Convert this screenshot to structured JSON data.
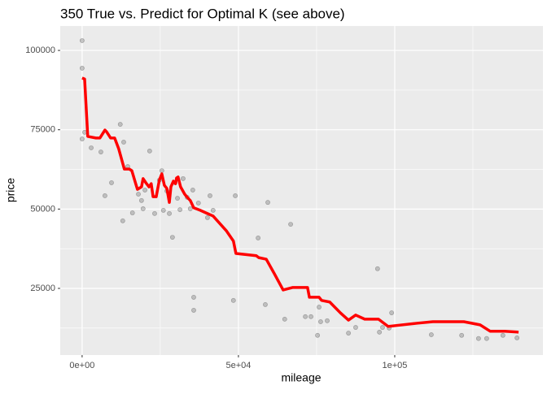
{
  "chart_data": {
    "type": "scatter",
    "title": "350 True vs. Predict for Optimal K (see above)",
    "x_label": "mileage",
    "y_label": "price",
    "xlim": [
      -7000,
      147400
    ],
    "ylim": [
      4000,
      107700
    ],
    "xticks": [
      {
        "value": 0,
        "label": "0e+00"
      },
      {
        "value": 50000,
        "label": "5e+04"
      },
      {
        "value": 100000,
        "label": "1e+05"
      }
    ],
    "yticks": [
      25000,
      50000,
      75000,
      100000
    ],
    "grid": true,
    "series": [
      {
        "type": "scatter",
        "color": "#555555",
        "x": [
          0,
          0,
          0,
          800,
          2900,
          6000,
          7300,
          9400,
          12200,
          13300,
          13000,
          14600,
          16100,
          18000,
          19000,
          19500,
          20100,
          21600,
          23200,
          24700,
          25500,
          26000,
          27100,
          27900,
          28900,
          29700,
          30500,
          31300,
          32300,
          33600,
          34600,
          35400,
          35700,
          35700,
          37200,
          40100,
          40900,
          41900,
          48400,
          49000,
          56300,
          58600,
          59400,
          64800,
          66700,
          71400,
          73200,
          75300,
          75800,
          76300,
          78400,
          85200,
          87500,
          94500,
          95100,
          96100,
          98200,
          99000,
          111700,
          121400,
          126800,
          129400,
          134600,
          139100
        ],
        "values": [
          103100,
          94400,
          72100,
          74200,
          69300,
          68000,
          54200,
          58300,
          76700,
          71100,
          46300,
          63400,
          48800,
          54700,
          52700,
          50100,
          56000,
          68300,
          48600,
          59100,
          62100,
          49600,
          55700,
          48600,
          41100,
          58300,
          53400,
          49800,
          59600,
          53700,
          50100,
          56000,
          22200,
          18100,
          51900,
          47300,
          54200,
          49600,
          21200,
          54200,
          40900,
          19900,
          52100,
          15300,
          45200,
          16100,
          16100,
          10200,
          19100,
          14500,
          14800,
          10900,
          12700,
          31200,
          11200,
          12700,
          12500,
          17300,
          10400,
          10200,
          9200,
          9200,
          10200,
          9400
        ]
      },
      {
        "type": "line",
        "color": "#ff0000",
        "x": [
          0,
          800,
          1800,
          4400,
          5700,
          7300,
          7800,
          9100,
          10400,
          11700,
          13500,
          15100,
          15900,
          17200,
          17700,
          19000,
          19500,
          20600,
          21400,
          22100,
          22700,
          23700,
          24700,
          25500,
          26300,
          27100,
          27900,
          28400,
          29200,
          29900,
          30200,
          30700,
          31500,
          32800,
          33900,
          34600,
          35700,
          37800,
          41900,
          46100,
          48400,
          49200,
          55700,
          56500,
          58900,
          61500,
          64300,
          67400,
          72100,
          72700,
          75800,
          76600,
          79200,
          82600,
          85200,
          87500,
          90400,
          94800,
          97900,
          100500,
          107000,
          112200,
          122100,
          127300,
          130500,
          135200,
          139600
        ],
        "values": [
          91300,
          91000,
          72900,
          72400,
          72400,
          74900,
          74400,
          72400,
          72400,
          69000,
          62600,
          62600,
          62100,
          57800,
          56200,
          57000,
          59600,
          58000,
          57000,
          58000,
          53900,
          53900,
          59100,
          61100,
          57500,
          56500,
          52100,
          57000,
          58800,
          58000,
          59800,
          60100,
          57000,
          54700,
          53400,
          52700,
          50400,
          49600,
          47800,
          43200,
          39900,
          36000,
          35300,
          34700,
          34200,
          29600,
          24500,
          25300,
          25300,
          22200,
          22200,
          21200,
          20700,
          17300,
          15000,
          16600,
          15300,
          15300,
          13000,
          13300,
          14000,
          14500,
          14500,
          13500,
          11500,
          11500,
          11200
        ]
      }
    ]
  }
}
